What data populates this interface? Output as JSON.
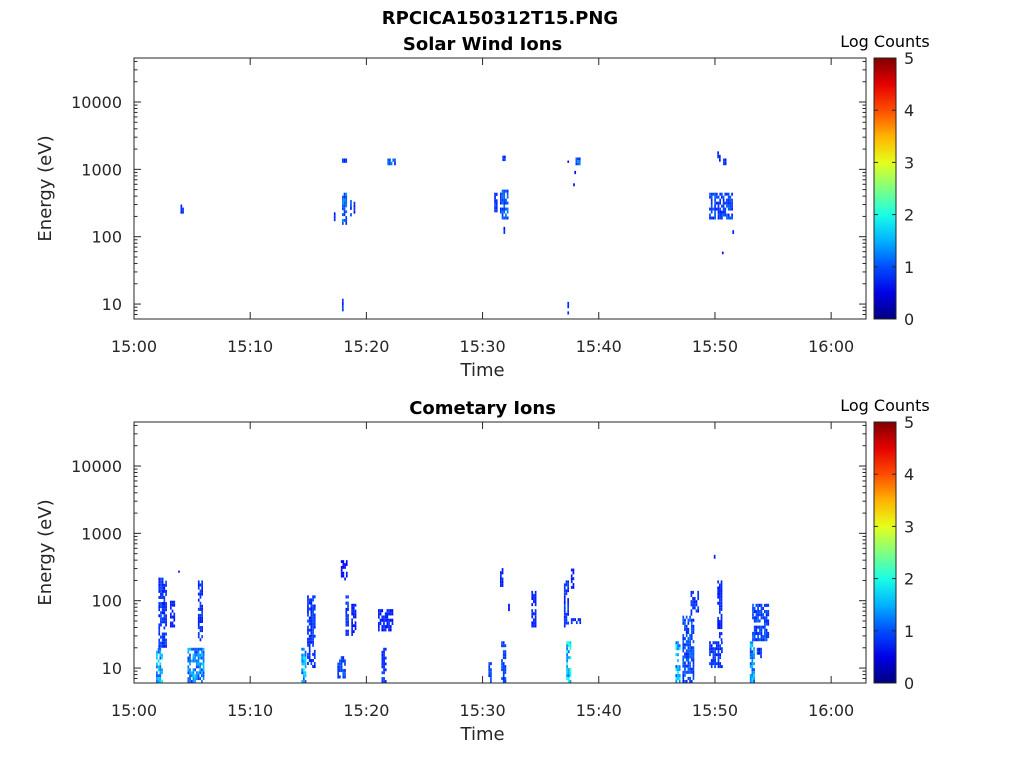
{
  "figure_title": "RPCICA150312T15.PNG",
  "chart_data": [
    {
      "type": "heatmap",
      "title": "Solar Wind Ions",
      "xlabel": "Time",
      "ylabel": "Energy (eV)",
      "x_tick_labels": [
        "15:00",
        "15:10",
        "15:20",
        "15:30",
        "15:40",
        "15:50",
        "16:00"
      ],
      "x_tick_minutes": [
        0,
        10,
        20,
        30,
        40,
        50,
        60
      ],
      "xlim_minutes": [
        0,
        63
      ],
      "y_scale": "log",
      "ylim": [
        6,
        45000
      ],
      "y_tick_values": [
        10,
        100,
        1000,
        10000
      ],
      "y_tick_labels": [
        "10",
        "100",
        "1000",
        "10000"
      ],
      "colorbar": {
        "label": "Log Counts",
        "min": 0,
        "max": 5,
        "tick_labels": [
          "0",
          "1",
          "2",
          "3",
          "4",
          "5"
        ]
      },
      "blobs": [
        {
          "t": [
            4.0,
            4.3
          ],
          "e": [
            220,
            300
          ],
          "v": 0.2
        },
        {
          "t": [
            17.2,
            17.4
          ],
          "e": [
            170,
            230
          ],
          "v": 0.2
        },
        {
          "t": [
            17.9,
            18.4
          ],
          "e": [
            1250,
            1450
          ],
          "v": 0.3
        },
        {
          "t": [
            17.9,
            18.4
          ],
          "e": [
            150,
            450
          ],
          "v": 0.6
        },
        {
          "t": [
            18.6,
            18.8
          ],
          "e": [
            200,
            350
          ],
          "v": 0.4
        },
        {
          "t": [
            18.9,
            19.1
          ],
          "e": [
            220,
            330
          ],
          "v": 0.2
        },
        {
          "t": [
            17.9,
            18.1
          ],
          "e": [
            7,
            12
          ],
          "v": 0.3
        },
        {
          "t": [
            21.8,
            22.5
          ],
          "e": [
            1150,
            1450
          ],
          "v": 0.5
        },
        {
          "t": [
            31.0,
            31.3
          ],
          "e": [
            230,
            450
          ],
          "v": 0.3
        },
        {
          "t": [
            31.5,
            32.3
          ],
          "e": [
            180,
            500
          ],
          "v": 0.5
        },
        {
          "t": [
            31.7,
            32.0
          ],
          "e": [
            1100,
            1600
          ],
          "v": 0.3
        },
        {
          "t": [
            31.8,
            32.0
          ],
          "e": [
            110,
            140
          ],
          "v": 0.2
        },
        {
          "t": [
            37.3,
            37.5
          ],
          "e": [
            7,
            12
          ],
          "v": 0.2
        },
        {
          "t": [
            37.3,
            37.5
          ],
          "e": [
            1250,
            1350
          ],
          "v": 0.1
        },
        {
          "t": [
            38.0,
            38.5
          ],
          "e": [
            1150,
            1500
          ],
          "v": 0.6
        },
        {
          "t": [
            37.9,
            38.0
          ],
          "e": [
            850,
            950
          ],
          "v": 0.1
        },
        {
          "t": [
            37.8,
            37.9
          ],
          "e": [
            560,
            620
          ],
          "v": 0.1
        },
        {
          "t": [
            49.5,
            51.5
          ],
          "e": [
            180,
            450
          ],
          "v": 0.4
        },
        {
          "t": [
            50.2,
            50.5
          ],
          "e": [
            1300,
            1850
          ],
          "v": 0.3
        },
        {
          "t": [
            50.7,
            51.0
          ],
          "e": [
            1150,
            1450
          ],
          "v": 0.2
        },
        {
          "t": [
            51.5,
            51.6
          ],
          "e": [
            110,
            125
          ],
          "v": 0.1
        },
        {
          "t": [
            50.6,
            50.7
          ],
          "e": [
            55,
            60
          ],
          "v": 0.1
        }
      ]
    },
    {
      "type": "heatmap",
      "title": "Cometary Ions",
      "xlabel": "Time",
      "ylabel": "Energy (eV)",
      "x_tick_labels": [
        "15:00",
        "15:10",
        "15:20",
        "15:30",
        "15:40",
        "15:50",
        "16:00"
      ],
      "x_tick_minutes": [
        0,
        10,
        20,
        30,
        40,
        50,
        60
      ],
      "xlim_minutes": [
        0,
        63
      ],
      "y_scale": "log",
      "ylim": [
        6,
        45000
      ],
      "y_tick_values": [
        10,
        100,
        1000,
        10000
      ],
      "y_tick_labels": [
        "10",
        "100",
        "1000",
        "10000"
      ],
      "colorbar": {
        "label": "Log Counts",
        "min": 0,
        "max": 5,
        "tick_labels": [
          "0",
          "1",
          "2",
          "3",
          "4",
          "5"
        ]
      },
      "blobs": [
        {
          "t": [
            1.9,
            2.5
          ],
          "e": [
            6,
            20
          ],
          "v": 0.9
        },
        {
          "t": [
            2.1,
            2.8
          ],
          "e": [
            20,
            220
          ],
          "v": 0.3
        },
        {
          "t": [
            3.1,
            3.6
          ],
          "e": [
            40,
            100
          ],
          "v": 0.2
        },
        {
          "t": [
            3.8,
            3.9
          ],
          "e": [
            260,
            280
          ],
          "v": 0.1
        },
        {
          "t": [
            4.6,
            6.0
          ],
          "e": [
            6,
            20
          ],
          "v": 0.8
        },
        {
          "t": [
            5.5,
            5.9
          ],
          "e": [
            25,
            200
          ],
          "v": 0.3
        },
        {
          "t": [
            14.4,
            14.9
          ],
          "e": [
            6,
            20
          ],
          "v": 1.0
        },
        {
          "t": [
            14.9,
            15.6
          ],
          "e": [
            10,
            120
          ],
          "v": 0.3
        },
        {
          "t": [
            17.5,
            18.2
          ],
          "e": [
            7,
            15
          ],
          "v": 0.4
        },
        {
          "t": [
            18.2,
            18.5
          ],
          "e": [
            30,
            120
          ],
          "v": 0.3
        },
        {
          "t": [
            18.7,
            19.1
          ],
          "e": [
            30,
            90
          ],
          "v": 0.2
        },
        {
          "t": [
            17.8,
            18.4
          ],
          "e": [
            200,
            400
          ],
          "v": 0.1
        },
        {
          "t": [
            21.0,
            22.3
          ],
          "e": [
            35,
            75
          ],
          "v": 0.2
        },
        {
          "t": [
            21.3,
            21.8
          ],
          "e": [
            6,
            20
          ],
          "v": 0.3
        },
        {
          "t": [
            30.5,
            30.8
          ],
          "e": [
            6,
            15
          ],
          "v": 0.4
        },
        {
          "t": [
            31.5,
            31.8
          ],
          "e": [
            160,
            340
          ],
          "v": 0.2
        },
        {
          "t": [
            31.6,
            32.0
          ],
          "e": [
            6,
            25
          ],
          "v": 0.4
        },
        {
          "t": [
            32.2,
            32.4
          ],
          "e": [
            70,
            90
          ],
          "v": 0.1
        },
        {
          "t": [
            34.2,
            34.6
          ],
          "e": [
            40,
            140
          ],
          "v": 0.2
        },
        {
          "t": [
            37.2,
            37.6
          ],
          "e": [
            6,
            25
          ],
          "v": 1.2
        },
        {
          "t": [
            37.0,
            37.5
          ],
          "e": [
            40,
            200
          ],
          "v": 0.3
        },
        {
          "t": [
            37.6,
            37.9
          ],
          "e": [
            150,
            300
          ],
          "v": 0.2
        },
        {
          "t": [
            37.6,
            38.6
          ],
          "e": [
            45,
            55
          ],
          "v": 0.2
        },
        {
          "t": [
            46.6,
            47.1
          ],
          "e": [
            6,
            25
          ],
          "v": 1.0
        },
        {
          "t": [
            47.2,
            48.2
          ],
          "e": [
            6,
            60
          ],
          "v": 0.4
        },
        {
          "t": [
            47.9,
            48.6
          ],
          "e": [
            60,
            140
          ],
          "v": 0.3
        },
        {
          "t": [
            49.5,
            50.6
          ],
          "e": [
            10,
            25
          ],
          "v": 0.3
        },
        {
          "t": [
            50.2,
            50.6
          ],
          "e": [
            25,
            200
          ],
          "v": 0.2
        },
        {
          "t": [
            49.9,
            50.1
          ],
          "e": [
            420,
            480
          ],
          "v": 0.2
        },
        {
          "t": [
            53.0,
            53.5
          ],
          "e": [
            6,
            25
          ],
          "v": 0.9
        },
        {
          "t": [
            53.2,
            54.6
          ],
          "e": [
            25,
            90
          ],
          "v": 0.4
        },
        {
          "t": [
            53.6,
            54.0
          ],
          "e": [
            14,
            20
          ],
          "v": 0.3
        }
      ]
    }
  ]
}
